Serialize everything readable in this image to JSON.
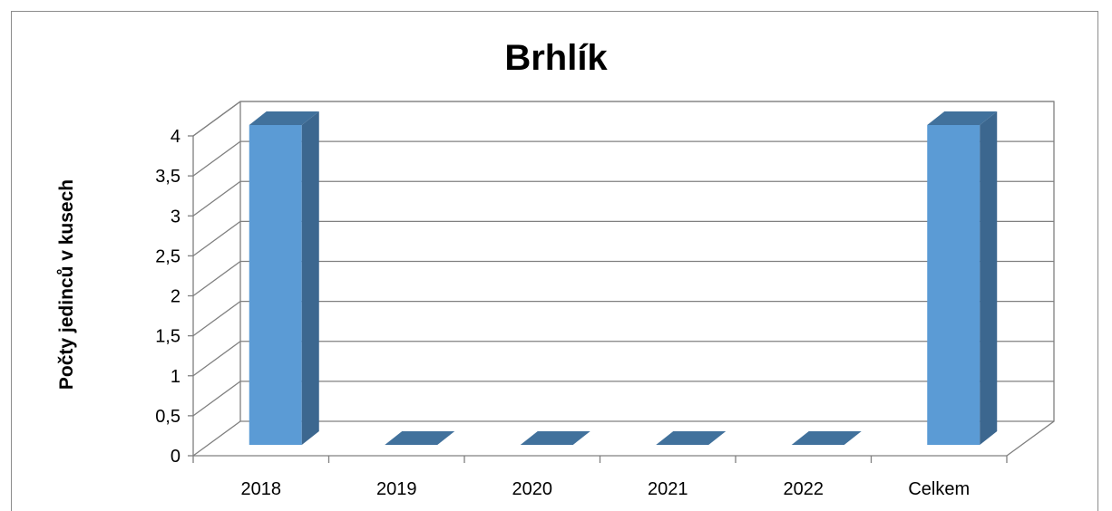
{
  "chart_data": {
    "type": "bar",
    "title": "Brhlík",
    "xlabel": "",
    "ylabel": "Počty jedinců v kusech",
    "categories": [
      "2018",
      "2019",
      "2020",
      "2021",
      "2022",
      "Celkem"
    ],
    "values": [
      4,
      0,
      0,
      0,
      0,
      4
    ],
    "ylim": [
      0,
      4
    ],
    "yticks": [
      "0",
      "0,5",
      "1",
      "1,5",
      "2",
      "2,5",
      "3",
      "3,5",
      "4"
    ],
    "grid": true,
    "style": "3d-column",
    "colors": {
      "bar_front": "#5b9bd5",
      "bar_side": "#3c678f",
      "bar_top": "#41719c",
      "grid": "#808080"
    }
  }
}
